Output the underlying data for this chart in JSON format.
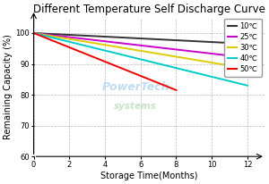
{
  "title": "Different Temperature Self Discharge Curve",
  "xlabel": "Storage Time(Months)",
  "ylabel": "Remaining Capacity (%)",
  "xlim": [
    0,
    13
  ],
  "ylim": [
    60,
    105
  ],
  "xticks": [
    0,
    2,
    4,
    6,
    8,
    10,
    12
  ],
  "yticks": [
    60,
    70,
    80,
    90,
    100
  ],
  "series": [
    {
      "label": "10℃",
      "color": "#333333",
      "x": [
        0,
        12
      ],
      "y": [
        100,
        96.5
      ]
    },
    {
      "label": "25℃",
      "color": "#cc00cc",
      "x": [
        0,
        12
      ],
      "y": [
        100,
        92.0
      ]
    },
    {
      "label": "30℃",
      "color": "#ddcc00",
      "x": [
        0,
        12
      ],
      "y": [
        100,
        88.5
      ]
    },
    {
      "label": "40℃",
      "color": "#00cccc",
      "x": [
        0,
        12
      ],
      "y": [
        100,
        83.0
      ]
    },
    {
      "label": "50℃",
      "color": "#ee0000",
      "x": [
        0,
        8
      ],
      "y": [
        100,
        81.5
      ]
    }
  ],
  "watermark_lines": [
    "PowerTech",
    "systems"
  ],
  "watermark_color_1": "#aad4f0",
  "watermark_color_2": "#b0d8b0",
  "background_color": "#ffffff",
  "grid_color": "#bbbbbb",
  "title_fontsize": 8.5,
  "axis_label_fontsize": 7,
  "tick_fontsize": 6,
  "legend_fontsize": 6
}
